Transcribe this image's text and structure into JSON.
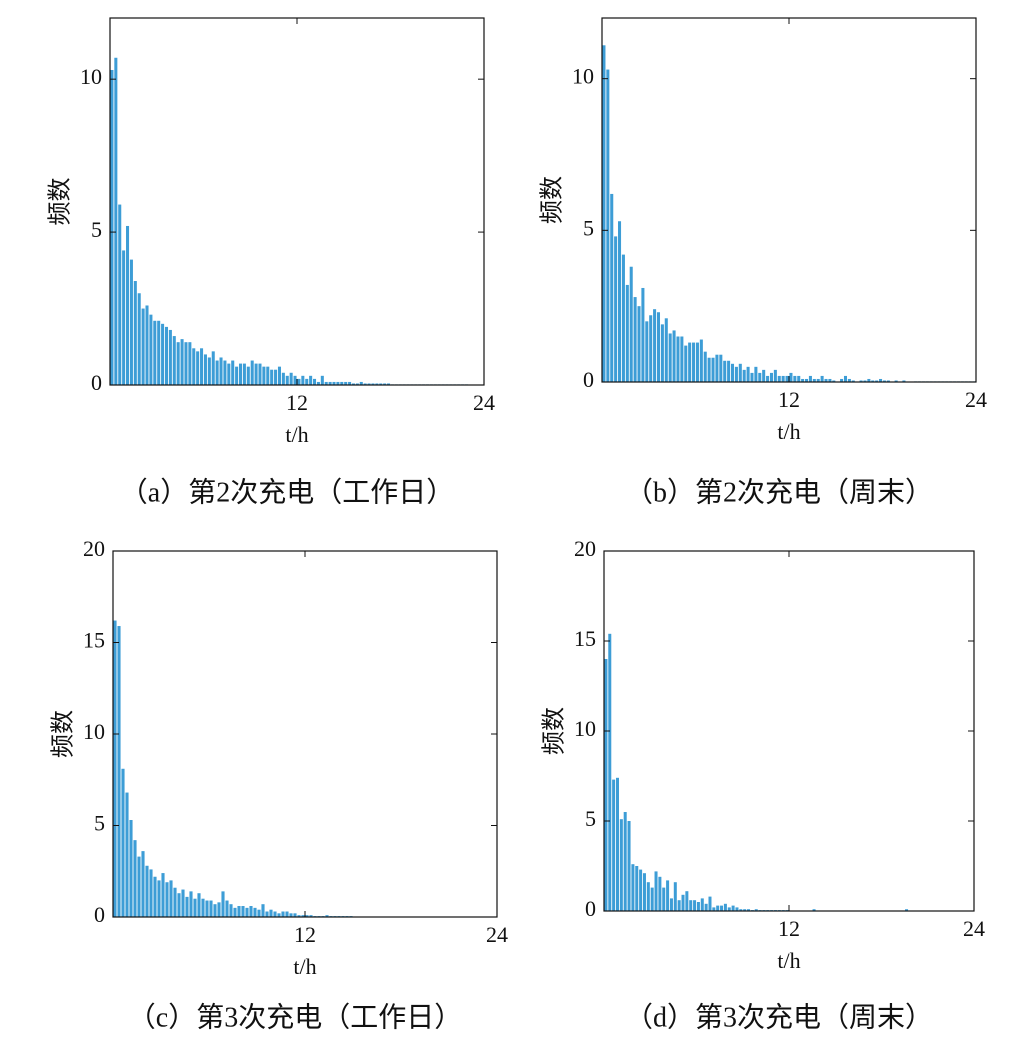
{
  "chart_data": [
    {
      "type": "histogram",
      "caption": "（a）第2次充电（工作日）",
      "x_label": "t/h",
      "y_label": "频数",
      "color": "#3d9dd6",
      "xlim": [
        0,
        24
      ],
      "ylim": [
        0,
        12
      ],
      "xticks": [
        12,
        24
      ],
      "yticks": [
        0,
        5,
        10
      ],
      "grid": false,
      "bins": [
        0,
        0.25,
        0.5,
        0.75,
        1,
        1.25,
        1.5,
        1.75,
        2,
        2.25,
        2.5,
        2.75,
        3,
        3.25,
        3.5,
        3.75,
        4,
        4.25,
        4.5,
        4.75,
        5,
        5.25,
        5.5,
        5.75,
        6,
        6.25,
        6.5,
        6.75,
        7,
        7.25,
        7.5,
        7.75,
        8,
        8.25,
        8.5,
        8.75,
        9,
        9.25,
        9.5,
        9.75,
        10,
        10.25,
        10.5,
        10.75,
        11,
        11.25,
        11.5,
        11.75,
        12,
        12.25,
        12.5,
        12.75,
        13,
        13.25,
        13.5,
        13.75,
        14,
        14.25,
        14.5,
        14.75,
        15,
        15.25,
        15.5,
        15.75,
        16,
        16.25,
        16.5,
        16.75,
        17,
        17.25,
        17.5,
        17.75,
        18,
        18.25,
        18.5,
        18.75,
        19,
        19.25,
        19.5,
        19.75,
        20,
        20.25,
        20.5,
        20.75,
        21,
        21.25,
        21.5,
        21.75,
        22,
        22.25,
        22.5,
        22.75,
        23,
        23.25,
        23.5,
        23.75,
        24
      ],
      "values": [
        10.3,
        10.7,
        5.9,
        4.4,
        5.2,
        4.1,
        3.4,
        3.0,
        2.5,
        2.6,
        2.3,
        2.1,
        2.1,
        2.0,
        1.9,
        1.8,
        1.6,
        1.4,
        1.5,
        1.4,
        1.4,
        1.2,
        1.1,
        1.2,
        1.0,
        0.9,
        1.1,
        0.8,
        0.9,
        0.8,
        0.7,
        0.8,
        0.6,
        0.7,
        0.7,
        0.6,
        0.8,
        0.7,
        0.7,
        0.6,
        0.6,
        0.5,
        0.5,
        0.6,
        0.4,
        0.3,
        0.4,
        0.3,
        0.2,
        0.3,
        0.2,
        0.3,
        0.2,
        0.1,
        0.3,
        0.1,
        0.1,
        0.1,
        0.1,
        0.1,
        0.1,
        0.1,
        0.05,
        0.05,
        0.1,
        0.05,
        0.05,
        0.05,
        0.05,
        0.05,
        0.05,
        0.05,
        0.02,
        0.02,
        0.02,
        0.02,
        0.02,
        0.02,
        0.02,
        0.02,
        0.02,
        0.02,
        0.02,
        0.02,
        0.02,
        0.02,
        0.02,
        0.02,
        0.02,
        0.02,
        0.02,
        0.02,
        0,
        0,
        0,
        0
      ]
    },
    {
      "type": "histogram",
      "caption": "（b）第2次充电（周末）",
      "x_label": "t/h",
      "y_label": "频数",
      "color": "#3d9dd6",
      "xlim": [
        0,
        24
      ],
      "ylim": [
        0,
        12
      ],
      "xticks": [
        12,
        24
      ],
      "yticks": [
        0,
        5,
        10
      ],
      "grid": false,
      "bins": [
        0,
        0.25,
        0.5,
        0.75,
        1,
        1.25,
        1.5,
        1.75,
        2,
        2.25,
        2.5,
        2.75,
        3,
        3.25,
        3.5,
        3.75,
        4,
        4.25,
        4.5,
        4.75,
        5,
        5.25,
        5.5,
        5.75,
        6,
        6.25,
        6.5,
        6.75,
        7,
        7.25,
        7.5,
        7.75,
        8,
        8.25,
        8.5,
        8.75,
        9,
        9.25,
        9.5,
        9.75,
        10,
        10.25,
        10.5,
        10.75,
        11,
        11.25,
        11.5,
        11.75,
        12,
        12.25,
        12.5,
        12.75,
        13,
        13.25,
        13.5,
        13.75,
        14,
        14.25,
        14.5,
        14.75,
        15,
        15.25,
        15.5,
        15.75,
        16,
        16.25,
        16.5,
        16.75,
        17,
        17.25,
        17.5,
        17.75,
        18,
        18.25,
        18.5,
        18.75,
        19,
        19.25,
        19.5,
        19.75,
        20,
        20.25,
        20.5,
        20.75,
        21,
        21.25,
        21.5,
        21.75,
        22,
        22.25,
        22.5,
        22.75,
        23,
        23.25,
        23.5,
        23.75,
        24
      ],
      "values": [
        11.1,
        10.3,
        6.2,
        4.8,
        5.3,
        4.2,
        3.2,
        3.8,
        2.8,
        2.5,
        3.1,
        2.0,
        2.2,
        2.4,
        2.3,
        1.9,
        2.1,
        1.6,
        1.7,
        1.5,
        1.5,
        1.2,
        1.3,
        1.3,
        1.3,
        1.4,
        1.0,
        0.8,
        0.8,
        0.9,
        0.9,
        0.7,
        0.7,
        0.6,
        0.5,
        0.6,
        0.4,
        0.5,
        0.3,
        0.5,
        0.3,
        0.4,
        0.2,
        0.3,
        0.4,
        0.2,
        0.2,
        0.2,
        0.3,
        0.2,
        0.2,
        0.1,
        0.1,
        0.2,
        0.1,
        0.1,
        0.2,
        0.1,
        0.1,
        0.05,
        0,
        0.1,
        0.2,
        0.1,
        0.05,
        0,
        0.05,
        0.05,
        0.1,
        0.05,
        0.05,
        0.1,
        0.05,
        0.05,
        0,
        0.05,
        0,
        0.05,
        0,
        0,
        0.02,
        0.02,
        0.02,
        0.02,
        0.02,
        0.02,
        0.02,
        0.02,
        0.02,
        0.02,
        0.02,
        0.02,
        0.02,
        0.02,
        0.02,
        0.02
      ]
    },
    {
      "type": "histogram",
      "caption": "（c）第3次充电（工作日）",
      "x_label": "t/h",
      "y_label": "频数",
      "color": "#3d9dd6",
      "xlim": [
        0,
        24
      ],
      "ylim": [
        0,
        20
      ],
      "xticks": [
        12,
        24
      ],
      "yticks": [
        0,
        5,
        10,
        15,
        20
      ],
      "grid": false,
      "bins": [
        0,
        0.25,
        0.5,
        0.75,
        1,
        1.25,
        1.5,
        1.75,
        2,
        2.25,
        2.5,
        2.75,
        3,
        3.25,
        3.5,
        3.75,
        4,
        4.25,
        4.5,
        4.75,
        5,
        5.25,
        5.5,
        5.75,
        6,
        6.25,
        6.5,
        6.75,
        7,
        7.25,
        7.5,
        7.75,
        8,
        8.25,
        8.5,
        8.75,
        9,
        9.25,
        9.5,
        9.75,
        10,
        10.25,
        10.5,
        10.75,
        11,
        11.25,
        11.5,
        11.75,
        12,
        12.25,
        12.5,
        12.75,
        13,
        13.25,
        13.5,
        13.75,
        14,
        14.25,
        14.5,
        14.75,
        15,
        15.25,
        15.5,
        15.75,
        16,
        16.25,
        16.5,
        16.75,
        17,
        17.25,
        17.5,
        17.75,
        18,
        18.25,
        18.5,
        18.75,
        19,
        19.25,
        19.5,
        19.75,
        20,
        20.25,
        20.5,
        20.75,
        21,
        21.25,
        21.5,
        21.75,
        22,
        22.25,
        22.5,
        22.75,
        23,
        23.25,
        23.5,
        23.75,
        24
      ],
      "values": [
        16.2,
        15.9,
        8.1,
        6.8,
        5.3,
        4.2,
        3.3,
        3.6,
        2.8,
        2.6,
        2.2,
        2.0,
        2.4,
        1.9,
        2.0,
        1.6,
        1.3,
        1.5,
        1.1,
        1.4,
        1.0,
        1.3,
        1.0,
        0.9,
        0.9,
        0.7,
        0.8,
        1.4,
        0.9,
        0.7,
        0.5,
        0.6,
        0.6,
        0.5,
        0.6,
        0.5,
        0.4,
        0.7,
        0.3,
        0.4,
        0.3,
        0.2,
        0.3,
        0.3,
        0.2,
        0.2,
        0.1,
        0.1,
        0.1,
        0.1,
        0.05,
        0.05,
        0.05,
        0.1,
        0.05,
        0.05,
        0.05,
        0.05,
        0.05,
        0.05,
        0.02,
        0.02,
        0.02,
        0.02,
        0.02,
        0.02,
        0.02,
        0.02,
        0.02,
        0.02,
        0.02,
        0.02,
        0.02,
        0.02,
        0.02,
        0.02,
        0.02,
        0.02,
        0.02,
        0.02,
        0.02,
        0.02,
        0.02,
        0.02,
        0.02,
        0.02,
        0.02,
        0.02,
        0.02,
        0.02,
        0.02,
        0.02,
        0.02,
        0.02,
        0.02,
        0.02
      ]
    },
    {
      "type": "histogram",
      "caption": "（d）第3次充电（周末）",
      "x_label": "t/h",
      "y_label": "频数",
      "color": "#3d9dd6",
      "xlim": [
        0,
        24
      ],
      "ylim": [
        0,
        20
      ],
      "xticks": [
        12,
        24
      ],
      "yticks": [
        0,
        5,
        10,
        15,
        20
      ],
      "grid": false,
      "bins": [
        0,
        0.25,
        0.5,
        0.75,
        1,
        1.25,
        1.5,
        1.75,
        2,
        2.25,
        2.5,
        2.75,
        3,
        3.25,
        3.5,
        3.75,
        4,
        4.25,
        4.5,
        4.75,
        5,
        5.25,
        5.5,
        5.75,
        6,
        6.25,
        6.5,
        6.75,
        7,
        7.25,
        7.5,
        7.75,
        8,
        8.25,
        8.5,
        8.75,
        9,
        9.25,
        9.5,
        9.75,
        10,
        10.25,
        10.5,
        10.75,
        11,
        11.25,
        11.5,
        11.75,
        12,
        12.25,
        12.5,
        12.75,
        13,
        13.25,
        13.5,
        13.75,
        14,
        14.25,
        14.5,
        14.75,
        15,
        15.25,
        15.5,
        15.75,
        16,
        16.25,
        16.5,
        16.75,
        17,
        17.25,
        17.5,
        17.75,
        18,
        18.25,
        18.5,
        18.75,
        19,
        19.25,
        19.5,
        19.75,
        20,
        20.25,
        20.5,
        20.75,
        21,
        21.25,
        21.5,
        21.75,
        22,
        22.25,
        22.5,
        22.75,
        23,
        23.25,
        23.5,
        23.75,
        24
      ],
      "values": [
        14.0,
        15.4,
        7.3,
        7.4,
        5.1,
        5.5,
        5.0,
        2.6,
        2.5,
        2.3,
        2.1,
        1.6,
        1.3,
        2.2,
        1.9,
        1.3,
        1.7,
        0.7,
        1.6,
        0.6,
        0.9,
        1.1,
        0.6,
        0.6,
        0.5,
        0.7,
        0.4,
        0.8,
        0.2,
        0.3,
        0.3,
        0.4,
        0.2,
        0.3,
        0.2,
        0.1,
        0.1,
        0.1,
        0.05,
        0.1,
        0.05,
        0.05,
        0.05,
        0.05,
        0.05,
        0.05,
        0.05,
        0.05,
        0.02,
        0.02,
        0.02,
        0.02,
        0.02,
        0.02,
        0.1,
        0.02,
        0.02,
        0.02,
        0.02,
        0.02,
        0.02,
        0.02,
        0.02,
        0.02,
        0.02,
        0.02,
        0.02,
        0.02,
        0.02,
        0.02,
        0.02,
        0.02,
        0.02,
        0.02,
        0.02,
        0.02,
        0.02,
        0.02,
        0.1,
        0.02,
        0.02,
        0.02,
        0.02,
        0.02,
        0.02,
        0.02,
        0.02,
        0.02,
        0.02,
        0.02,
        0.02,
        0.02,
        0.02,
        0.02,
        0.02,
        0.02
      ]
    }
  ]
}
